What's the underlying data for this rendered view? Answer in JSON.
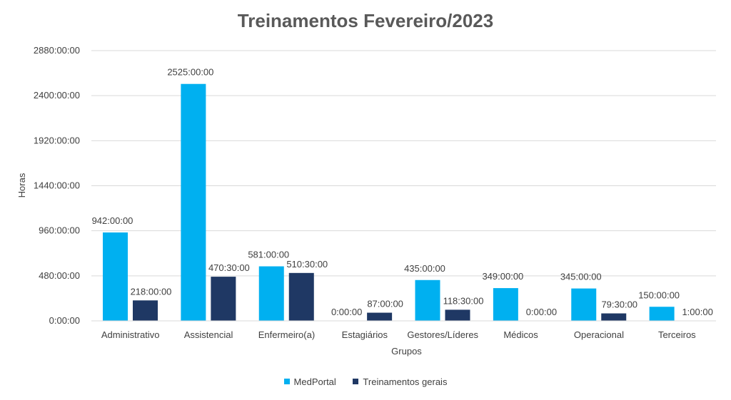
{
  "chart_data": {
    "type": "bar",
    "title": "Treinamentos Fevereiro/2023",
    "xlabel": "Grupos",
    "ylabel": "Horas",
    "categories": [
      "Administrativo",
      "Assistencial",
      "Enfermeiro(a)",
      "Estagiários",
      "Gestores/Líderes",
      "Médicos",
      "Operacional",
      "Terceiros"
    ],
    "y_ticks": [
      "0:00:00",
      "480:00:00",
      "960:00:00",
      "1440:00:00",
      "1920:00:00",
      "2400:00:00",
      "2880:00:00"
    ],
    "ylim": [
      0,
      2880
    ],
    "grid": true,
    "legend_position": "bottom",
    "series": [
      {
        "name": "MedPortal",
        "color": "#00B0F0",
        "values": [
          942,
          2525,
          581,
          0,
          435,
          349,
          345,
          150
        ],
        "labels": [
          "942:00:00",
          "2525:00:00",
          "581:00:00",
          "0:00:00",
          "435:00:00",
          "349:00:00",
          "345:00:00",
          "150:00:00"
        ]
      },
      {
        "name": "Treinamentos gerais",
        "color": "#1F3864",
        "values": [
          218,
          470.5,
          510.5,
          87,
          118.5,
          0,
          79.5,
          1
        ],
        "labels": [
          "218:00:00",
          "470:30:00",
          "510:30:00",
          "87:00:00",
          "118:30:00",
          "0:00:00",
          "79:30:00",
          "1:00:00"
        ]
      }
    ]
  }
}
